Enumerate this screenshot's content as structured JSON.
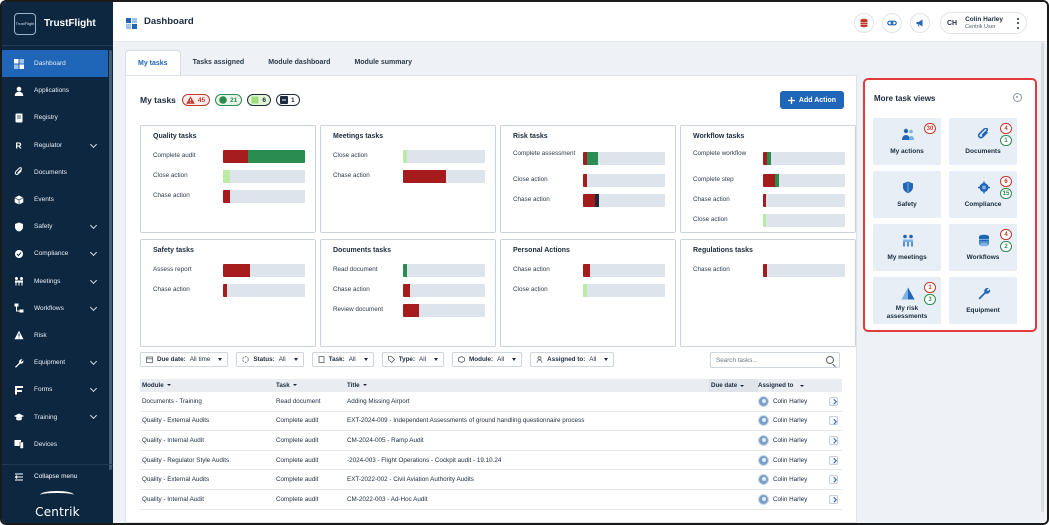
{
  "brand": {
    "name": "TrustFlight",
    "logo_text": "TrustFlight"
  },
  "sidebar": {
    "items": [
      {
        "label": "Dashboard",
        "icon": "dashboard-icon",
        "active": true,
        "chevron": false
      },
      {
        "label": "Applications",
        "icon": "person-icon",
        "chevron": false
      },
      {
        "label": "Registry",
        "icon": "book-icon",
        "chevron": false
      },
      {
        "label": "Regulator",
        "icon": "r-letter-icon",
        "chevron": true
      },
      {
        "label": "Documents",
        "icon": "paperclip-icon",
        "chevron": false
      },
      {
        "label": "Events",
        "icon": "cube-icon",
        "chevron": false
      },
      {
        "label": "Safety",
        "icon": "shield-icon",
        "chevron": true
      },
      {
        "label": "Compliance",
        "icon": "compliance-icon",
        "chevron": true
      },
      {
        "label": "Meetings",
        "icon": "meetings-icon",
        "chevron": true
      },
      {
        "label": "Workflows",
        "icon": "workflow-icon",
        "chevron": true
      },
      {
        "label": "Risk",
        "icon": "risk-icon",
        "chevron": false
      },
      {
        "label": "Equipment",
        "icon": "wrench-icon",
        "chevron": true
      },
      {
        "label": "Forms",
        "icon": "forms-icon",
        "chevron": true
      },
      {
        "label": "Training",
        "icon": "graduation-icon",
        "chevron": true
      },
      {
        "label": "Devices",
        "icon": "devices-icon",
        "chevron": false
      }
    ],
    "collapse_label": "Collapse menu",
    "footer_brand": "Centrik"
  },
  "header": {
    "title": "Dashboard",
    "user": {
      "initials": "CH",
      "name": "Colin Harley",
      "role": "Centrik User"
    }
  },
  "tabs": [
    {
      "label": "My tasks",
      "active": true
    },
    {
      "label": "Tasks assigned"
    },
    {
      "label": "Module dashboard"
    },
    {
      "label": "Module summary"
    }
  ],
  "my_tasks": {
    "title": "My tasks",
    "badges": [
      {
        "icon": "warning-icon",
        "count": "45",
        "color": "#c0392b",
        "bg": "#fdecea"
      },
      {
        "icon": "circle-icon",
        "count": "21",
        "color": "#2e8b4f",
        "bg": "#e6f4ea"
      },
      {
        "icon": "square-icon",
        "count": "6",
        "color": "#1b2a3d",
        "bg": "#e4f6d6"
      },
      {
        "icon": "dash-icon",
        "count": "1",
        "color": "#1b2a3d",
        "bg": "#fff"
      }
    ],
    "add_action": "Add Action"
  },
  "colors": {
    "red": "#a61c1c",
    "green": "#2a8c50",
    "lightgreen": "#b9eaa6",
    "dark": "#1e2a38",
    "track": "#dde4ec",
    "accent": "#1f66b8"
  },
  "cards": [
    {
      "title": "Quality tasks",
      "rows": [
        {
          "label": "Complete audit",
          "segments": [
            {
              "c": "red",
              "v": 0.3
            },
            {
              "c": "green",
              "v": 0.7
            }
          ]
        },
        {
          "label": "Close action",
          "segments": [
            {
              "c": "lightgreen",
              "v": 0.08
            }
          ]
        },
        {
          "label": "Chase action",
          "segments": [
            {
              "c": "red",
              "v": 0.08
            }
          ]
        }
      ]
    },
    {
      "title": "Meetings tasks",
      "rows": [
        {
          "label": "Close action",
          "segments": [
            {
              "c": "lightgreen",
              "v": 0.05
            }
          ]
        },
        {
          "label": "Chase action",
          "segments": [
            {
              "c": "red",
              "v": 0.52
            }
          ]
        }
      ]
    },
    {
      "title": "Risk tasks",
      "rows": [
        {
          "label": "Complete assessment",
          "segments": [
            {
              "c": "red",
              "v": 0.05
            },
            {
              "c": "green",
              "v": 0.13
            }
          ]
        },
        {
          "label": "Close action",
          "segments": [
            {
              "c": "red",
              "v": 0.05
            }
          ]
        },
        {
          "label": "Chase action",
          "segments": [
            {
              "c": "red",
              "v": 0.15
            },
            {
              "c": "dark",
              "v": 0.04
            }
          ]
        }
      ]
    },
    {
      "title": "Workflow tasks",
      "rows": [
        {
          "label": "Complete workflow",
          "segments": [
            {
              "c": "red",
              "v": 0.05
            },
            {
              "c": "green",
              "v": 0.05
            }
          ]
        },
        {
          "label": "Complete step",
          "segments": [
            {
              "c": "red",
              "v": 0.15
            },
            {
              "c": "green",
              "v": 0.05
            }
          ]
        },
        {
          "label": "Chase action",
          "segments": [
            {
              "c": "red",
              "v": 0.04
            }
          ]
        },
        {
          "label": "Close action",
          "segments": [
            {
              "c": "lightgreen",
              "v": 0.04
            }
          ]
        }
      ]
    },
    {
      "title": "Safety tasks",
      "rows": [
        {
          "label": "Assess report",
          "segments": [
            {
              "c": "red",
              "v": 0.33
            }
          ]
        },
        {
          "label": "Chase action",
          "segments": [
            {
              "c": "red",
              "v": 0.05
            }
          ]
        }
      ]
    },
    {
      "title": "Documents tasks",
      "rows": [
        {
          "label": "Read document",
          "segments": [
            {
              "c": "green",
              "v": 0.05
            }
          ]
        },
        {
          "label": "Chase action",
          "segments": [
            {
              "c": "red",
              "v": 0.09
            }
          ]
        },
        {
          "label": "Review document",
          "segments": [
            {
              "c": "red",
              "v": 0.2
            }
          ]
        }
      ]
    },
    {
      "title": "Personal Actions",
      "rows": [
        {
          "label": "Chase action",
          "segments": [
            {
              "c": "red",
              "v": 0.09
            }
          ]
        },
        {
          "label": "Close action",
          "segments": [
            {
              "c": "lightgreen",
              "v": 0.05
            }
          ]
        }
      ]
    },
    {
      "title": "Regulations tasks",
      "rows": [
        {
          "label": "Chase action",
          "segments": [
            {
              "c": "red",
              "v": 0.05
            }
          ]
        }
      ]
    }
  ],
  "filters": [
    {
      "icon": "calendar-icon",
      "label": "Due date:",
      "value": "All time"
    },
    {
      "icon": "status-icon",
      "label": "Status:",
      "value": "All"
    },
    {
      "icon": "task-icon",
      "label": "Task:",
      "value": "All"
    },
    {
      "icon": "tag-icon",
      "label": "Type:",
      "value": "All"
    },
    {
      "icon": "module-icon",
      "label": "Module:",
      "value": "All"
    },
    {
      "icon": "user-icon",
      "label": "Assigned to:",
      "value": "All"
    }
  ],
  "search": {
    "placeholder": "Search tasks..."
  },
  "table": {
    "columns": {
      "module": "Module",
      "task": "Task",
      "title": "Title",
      "due": "Due date",
      "assigned": "Assigned to"
    },
    "rows": [
      {
        "module": "Documents - Training",
        "task": "Read document",
        "title": "Adding Missing Airport",
        "due": "",
        "assigned": "Colin Harley"
      },
      {
        "module": "Quality - External Audits",
        "task": "Complete audit",
        "title": "EXT-2024-009 - Independent Assessments of ground handling questionnaire process",
        "due": "",
        "assigned": "Colin Harley"
      },
      {
        "module": "Quality - Internal Audit",
        "task": "Complete audit",
        "title": "CM-2024-005 - Ramp Audit",
        "due": "",
        "assigned": "Colin Harley"
      },
      {
        "module": "Quality - Regulator Style Audits",
        "task": "Complete audit",
        "title": "-2024-003 - Flight Operations - Cockpit audit - 19.10.24",
        "due": "",
        "assigned": "Colin Harley"
      },
      {
        "module": "Quality - External Audits",
        "task": "Complete audit",
        "title": "EXT-2022-002 - Civil Aviation Authority Audits",
        "due": "",
        "assigned": "Colin Harley"
      },
      {
        "module": "Quality - Internal Audit",
        "task": "Complete audit",
        "title": "CM-2022-003 - Ad-Hoc Audit",
        "due": "",
        "assigned": "Colin Harley"
      }
    ]
  },
  "more_views": {
    "title": "More task views",
    "tiles": [
      {
        "label": "My actions",
        "icon": "my-actions-icon",
        "counts": [
          {
            "v": "30",
            "t": "r"
          }
        ]
      },
      {
        "label": "Documents",
        "icon": "paperclip-icon",
        "counts": [
          {
            "v": "4",
            "t": "r"
          },
          {
            "v": "1",
            "t": "g"
          }
        ]
      },
      {
        "label": "Safety",
        "icon": "shield-icon",
        "counts": []
      },
      {
        "label": "Compliance",
        "icon": "compliance-icon",
        "counts": [
          {
            "v": "6",
            "t": "r"
          },
          {
            "v": "15",
            "t": "g"
          }
        ]
      },
      {
        "label": "My meetings",
        "icon": "meetings-icon",
        "counts": []
      },
      {
        "label": "Workflows",
        "icon": "workflow-icon",
        "counts": [
          {
            "v": "4",
            "t": "r"
          },
          {
            "v": "2",
            "t": "g"
          }
        ]
      },
      {
        "label": "My risk assessments",
        "icon": "risk-icon",
        "counts": [
          {
            "v": "1",
            "t": "r"
          },
          {
            "v": "3",
            "t": "g"
          }
        ]
      },
      {
        "label": "Equipment",
        "icon": "wrench-icon",
        "counts": []
      }
    ]
  }
}
